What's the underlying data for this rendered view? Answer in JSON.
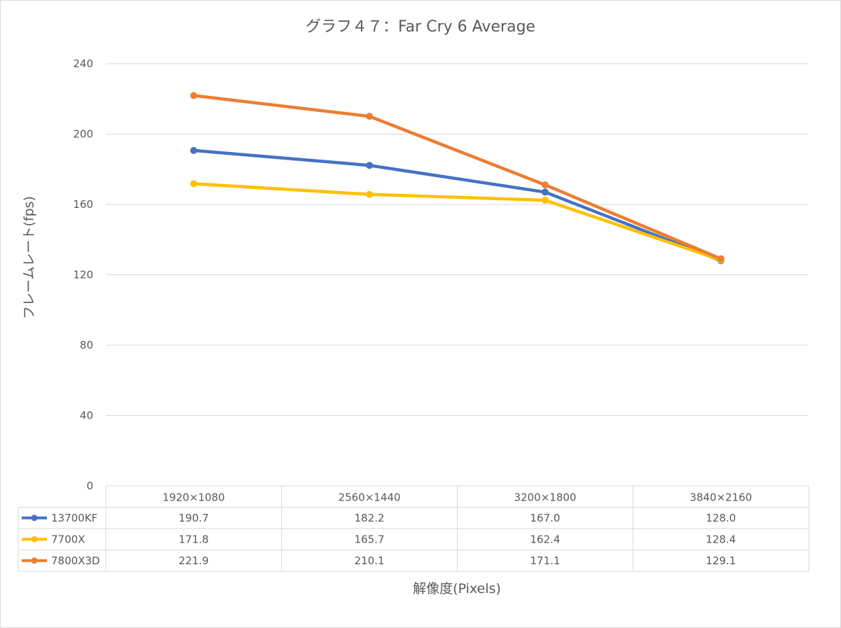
{
  "chart_data": {
    "type": "line",
    "title": "グラフ４７：Far Cry 6 Average",
    "xlabel": "解像度(Pixels)",
    "ylabel": "フレームレート(fps)",
    "ylim": [
      0,
      240
    ],
    "yticks": [
      0,
      40,
      80,
      120,
      160,
      200,
      240
    ],
    "categories": [
      "1920×1080",
      "2560×1440",
      "3200×1800",
      "3840×2160"
    ],
    "grid": true,
    "legend_placement": "data-table",
    "series": [
      {
        "name": "13700KF",
        "color": "#4472c4",
        "values": [
          190.7,
          182.2,
          167.0,
          128.0
        ],
        "labels": [
          "190.7",
          "182.2",
          "167.0",
          "128.0"
        ]
      },
      {
        "name": "7700X",
        "color": "#ffc000",
        "values": [
          171.8,
          165.7,
          162.4,
          128.4
        ],
        "labels": [
          "171.8",
          "165.7",
          "162.4",
          "128.4"
        ]
      },
      {
        "name": "7800X3D",
        "color": "#ed7d31",
        "values": [
          221.9,
          210.1,
          171.1,
          129.1
        ],
        "labels": [
          "221.9",
          "210.1",
          "171.1",
          "129.1"
        ]
      }
    ]
  }
}
